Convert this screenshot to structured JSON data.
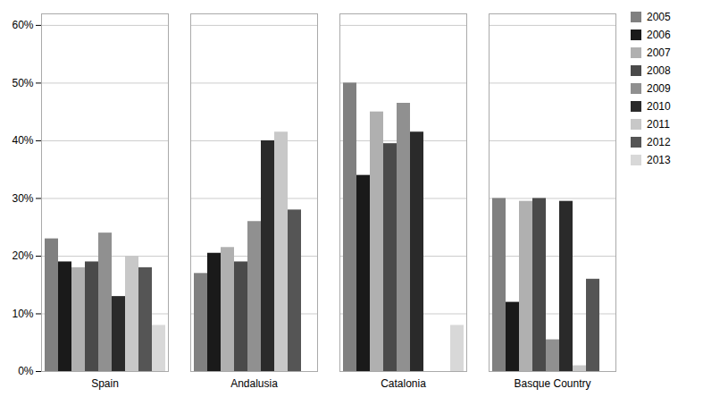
{
  "chart_data": {
    "type": "bar",
    "categories": [
      "Spain",
      "Andalusia",
      "Catalonia",
      "Basque Country"
    ],
    "series": [
      {
        "name": "2005",
        "color": "#808080",
        "values": [
          0.23,
          0.17,
          0.5,
          0.3
        ]
      },
      {
        "name": "2006",
        "color": "#1a1a1a",
        "values": [
          0.19,
          0.205,
          0.34,
          0.12
        ]
      },
      {
        "name": "2007",
        "color": "#b0b0b0",
        "values": [
          0.18,
          0.215,
          0.45,
          0.295
        ]
      },
      {
        "name": "2008",
        "color": "#4a4a4a",
        "values": [
          0.19,
          0.19,
          0.395,
          0.3
        ]
      },
      {
        "name": "2009",
        "color": "#909090",
        "values": [
          0.24,
          0.26,
          0.465,
          0.055
        ]
      },
      {
        "name": "2010",
        "color": "#2a2a2a",
        "values": [
          0.13,
          0.4,
          0.415,
          0.295
        ]
      },
      {
        "name": "2011",
        "color": "#c8c8c8",
        "values": [
          0.2,
          0.415,
          0.0,
          0.01
        ]
      },
      {
        "name": "2012",
        "color": "#555555",
        "values": [
          0.18,
          0.28,
          0.0,
          0.16
        ]
      },
      {
        "name": "2013",
        "color": "#d8d8d8",
        "values": [
          0.08,
          0.0,
          0.08,
          0.0
        ]
      }
    ],
    "ylim": [
      0,
      0.62
    ],
    "yticks": [
      {
        "value": 0.0,
        "label": "0%"
      },
      {
        "value": 0.1,
        "label": "10%"
      },
      {
        "value": 0.2,
        "label": "20%"
      },
      {
        "value": 0.3,
        "label": "30%"
      },
      {
        "value": 0.4,
        "label": "40%"
      },
      {
        "value": 0.5,
        "label": "50%"
      },
      {
        "value": 0.6,
        "label": "60%"
      }
    ],
    "grid": true,
    "legend": "right"
  }
}
